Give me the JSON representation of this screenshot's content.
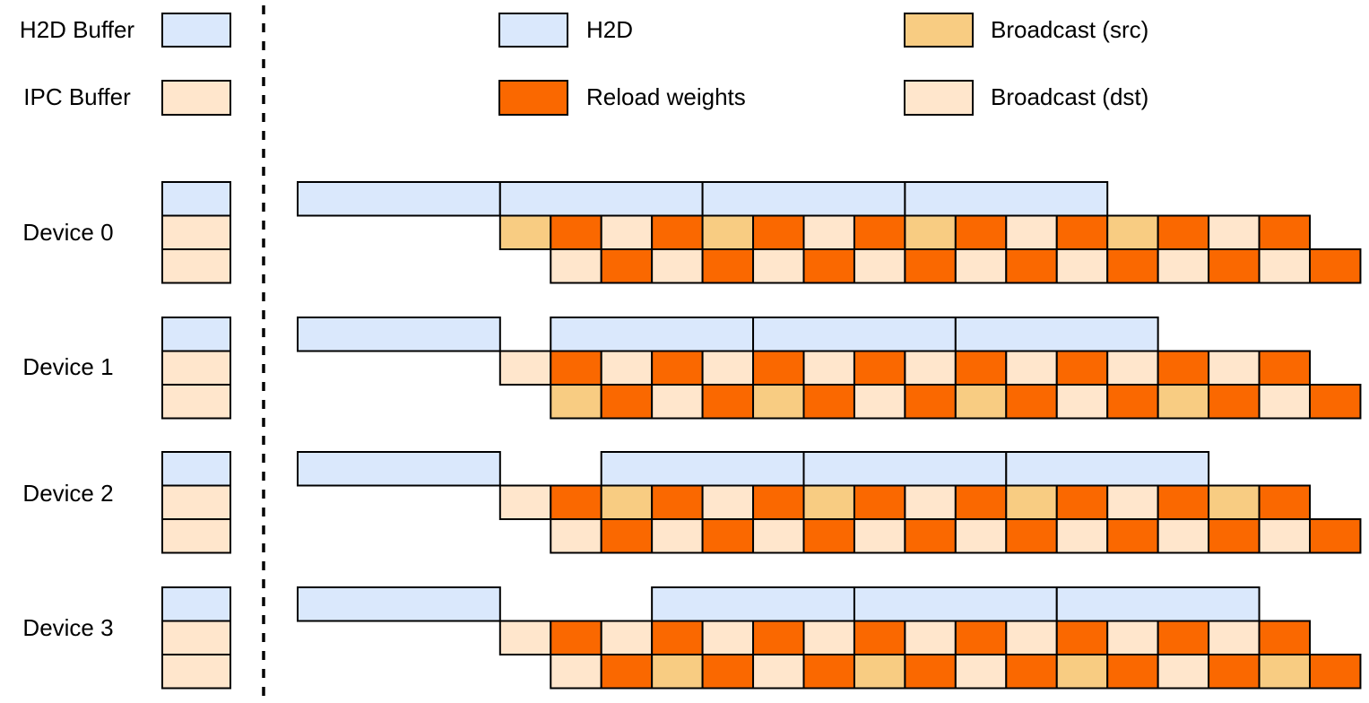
{
  "colors": {
    "h2d": "#dae8fc",
    "reload": "#fa6800",
    "bsrc": "#f8cc82",
    "bdst": "#ffe6cc",
    "ipc": "#ffe6cc",
    "stroke": "#000000"
  },
  "buffers_legend": [
    {
      "label": "H2D Buffer",
      "color_key": "h2d"
    },
    {
      "label": "IPC Buffer",
      "color_key": "ipc"
    }
  ],
  "ops_legend": [
    {
      "label": "H2D",
      "color_key": "h2d"
    },
    {
      "label": "Reload weights",
      "color_key": "reload"
    },
    {
      "label": "Broadcast (src)",
      "color_key": "bsrc"
    },
    {
      "label": "Broadcast (dst)",
      "color_key": "bdst"
    }
  ],
  "devices": [
    {
      "label": "Device 0",
      "h2d_start_slot": 4,
      "ipc_row_1": [
        "bsrc",
        "reload",
        "bdst",
        "reload",
        "bsrc",
        "reload",
        "bdst",
        "reload",
        "bsrc",
        "reload",
        "bdst",
        "reload",
        "bsrc",
        "reload",
        "bdst",
        "reload"
      ],
      "ipc_row_2": [
        "bdst",
        "reload",
        "bdst",
        "reload",
        "bdst",
        "reload",
        "bdst",
        "reload",
        "bdst",
        "reload",
        "bdst",
        "reload",
        "bdst",
        "reload",
        "bdst",
        "reload"
      ]
    },
    {
      "label": "Device 1",
      "h2d_start_slot": 5,
      "ipc_row_1": [
        "bdst",
        "reload",
        "bdst",
        "reload",
        "bdst",
        "reload",
        "bdst",
        "reload",
        "bdst",
        "reload",
        "bdst",
        "reload",
        "bdst",
        "reload",
        "bdst",
        "reload"
      ],
      "ipc_row_2": [
        "bsrc",
        "reload",
        "bdst",
        "reload",
        "bsrc",
        "reload",
        "bdst",
        "reload",
        "bsrc",
        "reload",
        "bdst",
        "reload",
        "bsrc",
        "reload",
        "bdst",
        "reload"
      ]
    },
    {
      "label": "Device 2",
      "h2d_start_slot": 6,
      "ipc_row_1": [
        "bdst",
        "reload",
        "bsrc",
        "reload",
        "bdst",
        "reload",
        "bsrc",
        "reload",
        "bdst",
        "reload",
        "bsrc",
        "reload",
        "bdst",
        "reload",
        "bsrc",
        "reload"
      ],
      "ipc_row_2": [
        "bdst",
        "reload",
        "bdst",
        "reload",
        "bdst",
        "reload",
        "bdst",
        "reload",
        "bdst",
        "reload",
        "bdst",
        "reload",
        "bdst",
        "reload",
        "bdst",
        "reload"
      ]
    },
    {
      "label": "Device 3",
      "h2d_start_slot": 7,
      "ipc_row_1": [
        "bdst",
        "reload",
        "bdst",
        "reload",
        "bdst",
        "reload",
        "bdst",
        "reload",
        "bdst",
        "reload",
        "bdst",
        "reload",
        "bdst",
        "reload",
        "bdst",
        "reload"
      ],
      "ipc_row_2": [
        "bdst",
        "reload",
        "bsrc",
        "reload",
        "bdst",
        "reload",
        "bsrc",
        "reload",
        "bdst",
        "reload",
        "bsrc",
        "reload",
        "bdst",
        "reload",
        "bsrc",
        "reload"
      ]
    }
  ]
}
